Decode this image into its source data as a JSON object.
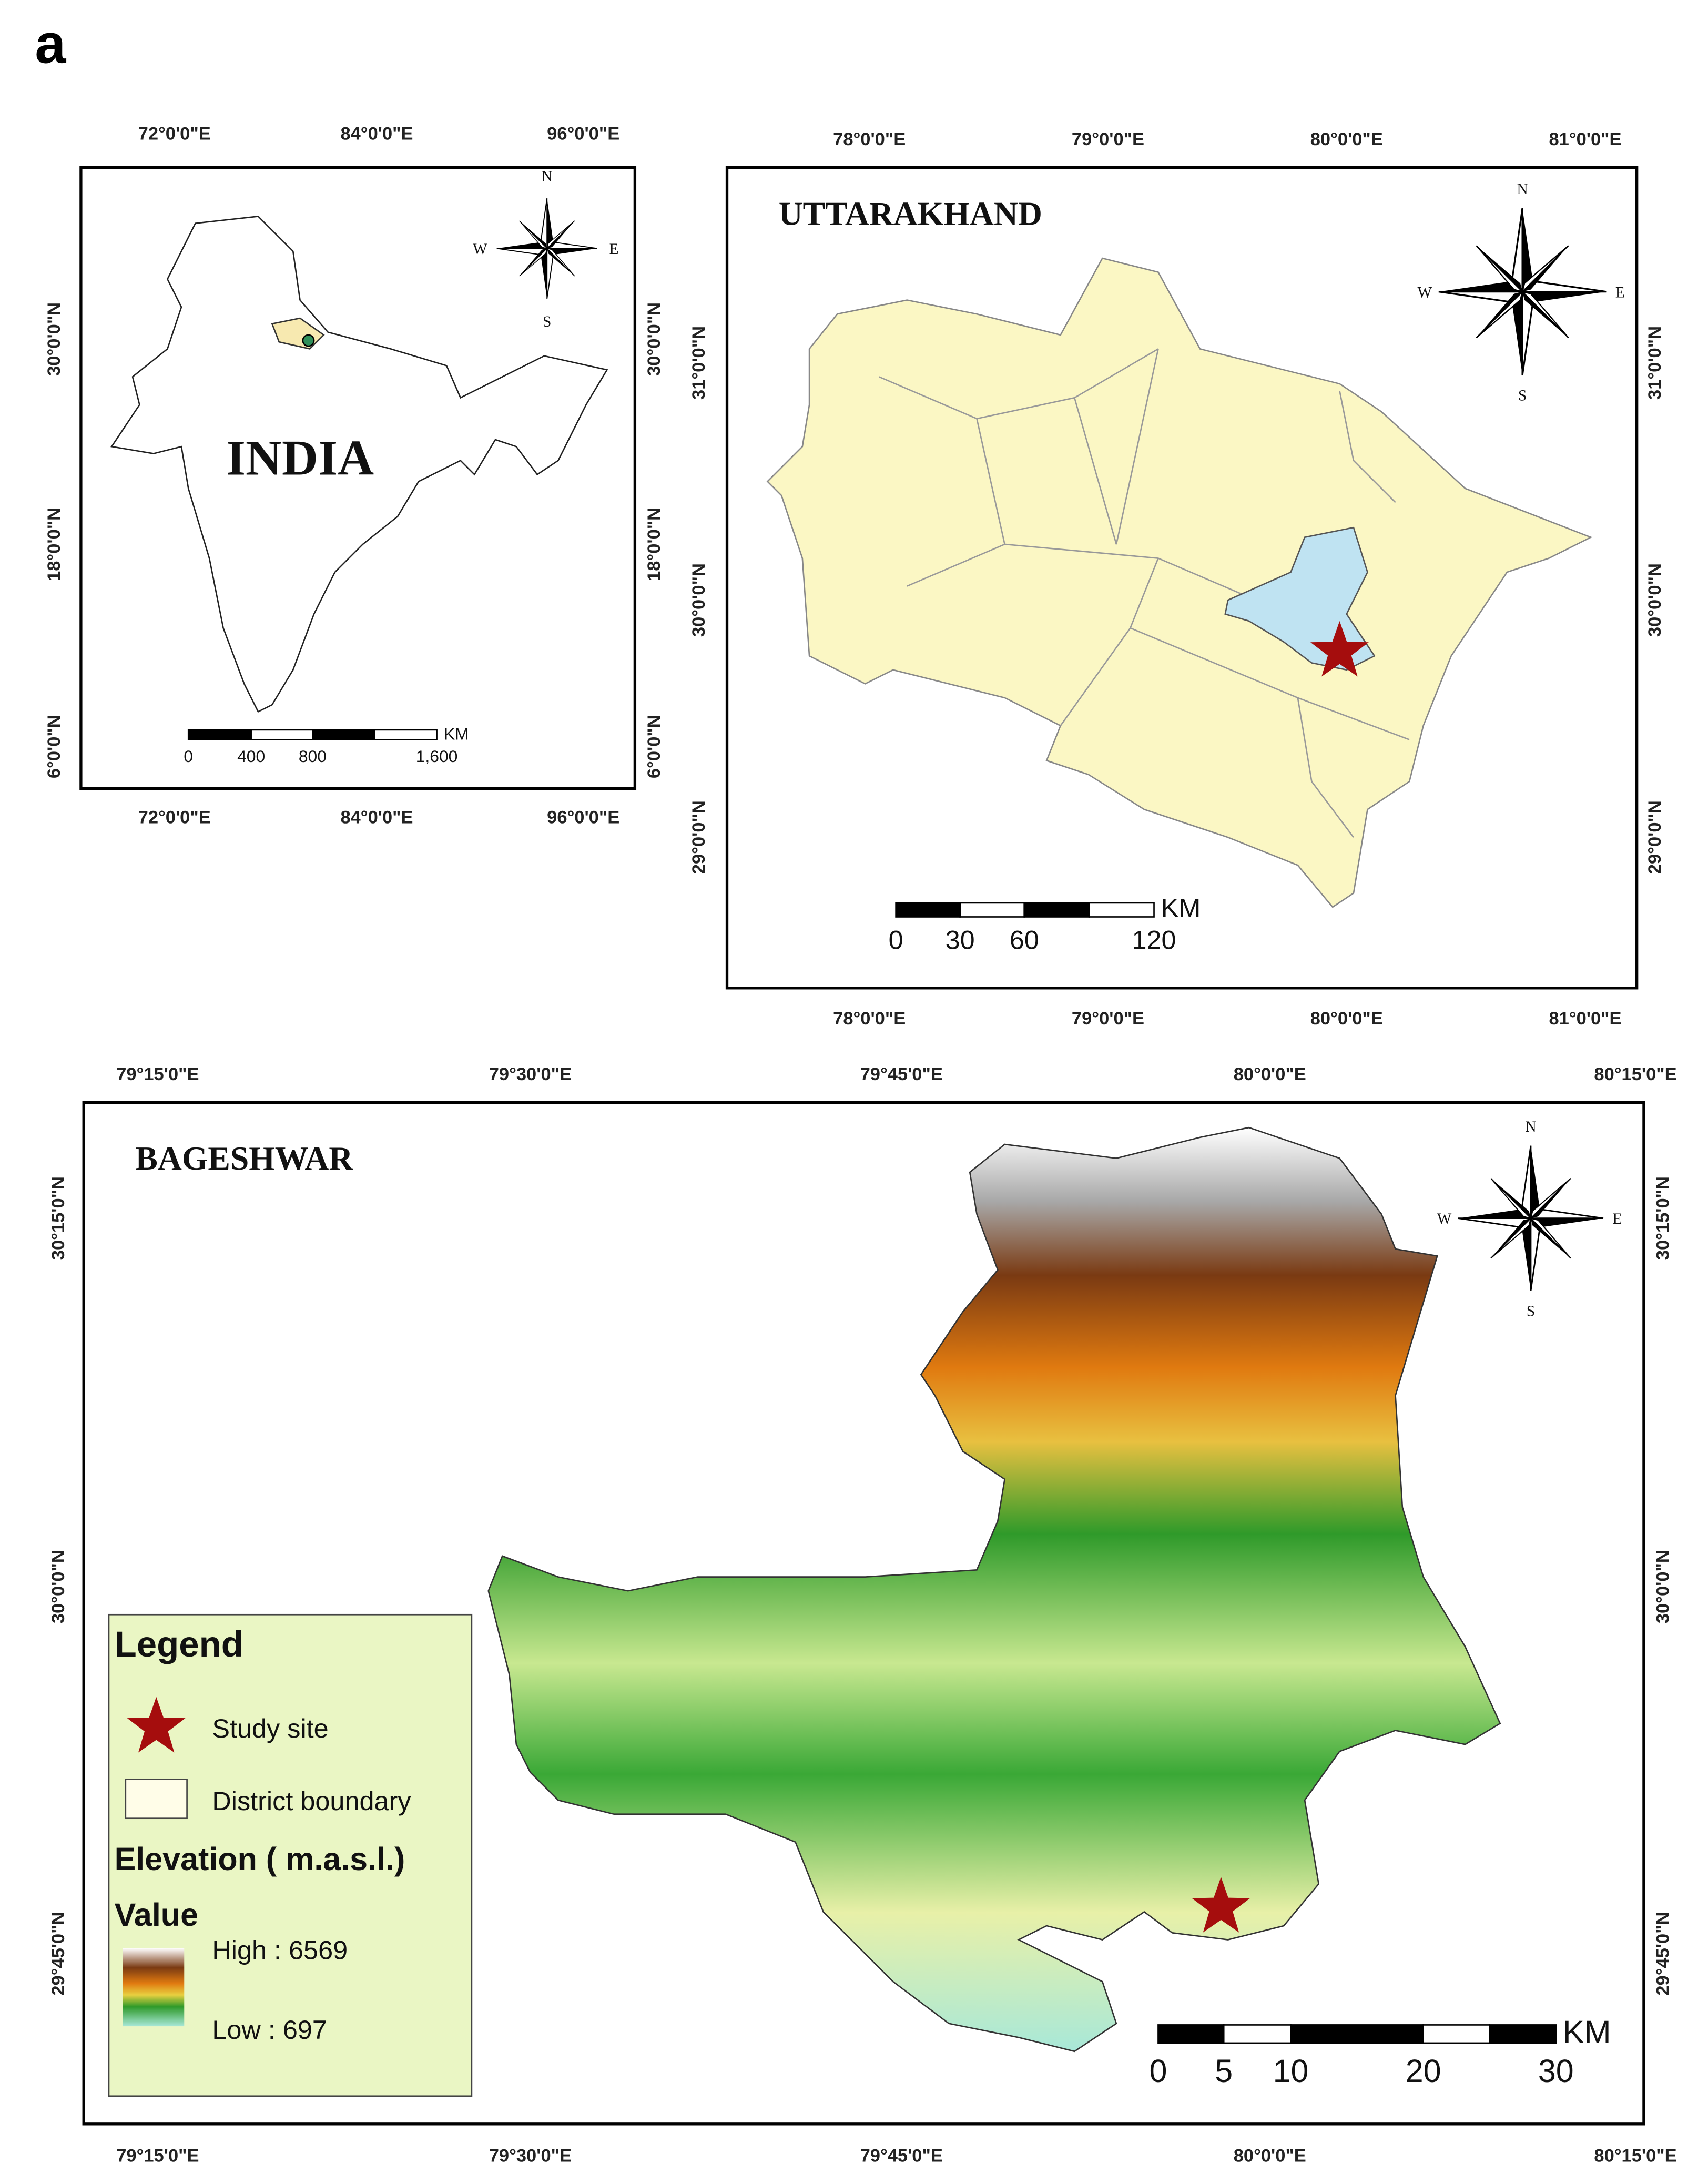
{
  "panel_label": "a",
  "maps": [
    {
      "title": "INDIA",
      "x_labels": [
        "72°0'0\"E",
        "84°0'0\"E",
        "96°0'0\"E"
      ],
      "y_labels": [
        "30°0'0\"N",
        "18°0'0\"N",
        "6°0'0\"N"
      ],
      "compass": {
        "n": "N",
        "e": "E",
        "s": "S",
        "w": "W"
      },
      "scale": {
        "labels": [
          "0",
          "400",
          "800",
          "1,600"
        ],
        "unit": "KM"
      }
    },
    {
      "title": "UTTARAKHAND",
      "x_labels": [
        "78°0'0\"E",
        "79°0'0\"E",
        "80°0'0\"E",
        "81°0'0\"E"
      ],
      "y_labels": [
        "31°0'0\"N",
        "30°0'0\"N",
        "29°0'0\"N"
      ],
      "compass": {
        "n": "N",
        "e": "E",
        "s": "S",
        "w": "W"
      },
      "scale": {
        "labels": [
          "0",
          "30",
          "60",
          "120"
        ],
        "unit": "KM"
      }
    },
    {
      "title": "BAGESHWAR",
      "x_labels": [
        "79°15'0\"E",
        "79°30'0\"E",
        "79°45'0\"E",
        "80°0'0\"E",
        "80°15'0\"E"
      ],
      "y_labels": [
        "30°15'0\"N",
        "30°0'0\"N",
        "29°45'0\"N"
      ],
      "compass": {
        "n": "N",
        "e": "E",
        "s": "S",
        "w": "W"
      },
      "scale": {
        "labels": [
          "0",
          "5",
          "10",
          "20",
          "30"
        ],
        "unit": "KM"
      }
    }
  ],
  "legend": {
    "title": "Legend",
    "study_site": "Study site",
    "district_boundary": "District boundary",
    "elevation": "Elevation ( m.a.s.l.)",
    "value": "Value",
    "high": "High : 6569",
    "low": "Low : 697"
  }
}
